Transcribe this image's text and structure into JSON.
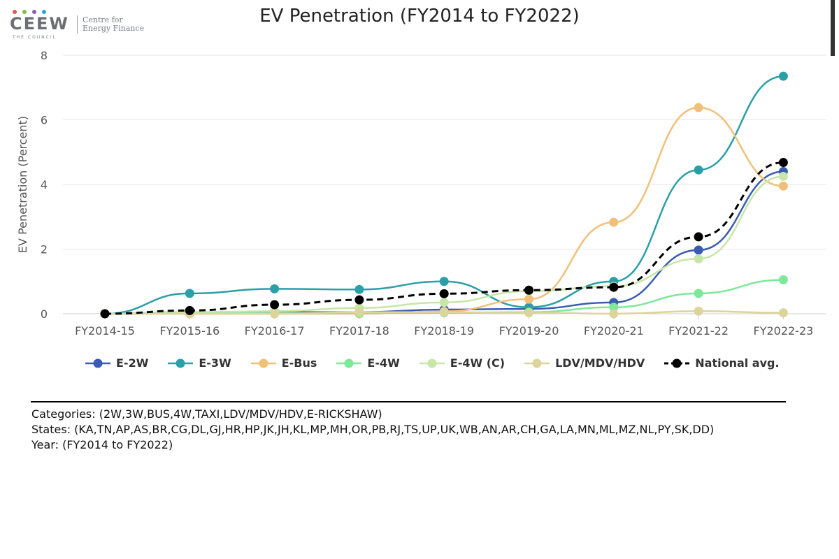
{
  "logo": {
    "mark": "CEEW",
    "tagline": "THE COUNCIL",
    "org_line1": "Centre for",
    "org_line2": "Energy Finance",
    "dot_colors": [
      "#e0584d",
      "#7bbf45",
      "#8a5fb5",
      "#2aa3d8"
    ]
  },
  "chart_data": {
    "type": "line",
    "title": "EV Penetration (FY2014 to FY2022)",
    "xlabel": "",
    "ylabel": "EV Penetration (Percent)",
    "ylim": [
      0,
      8
    ],
    "yticks": [
      0,
      2,
      4,
      6,
      8
    ],
    "grid": true,
    "legend_position": "bottom",
    "categories": [
      "FY2014-15",
      "FY2015-16",
      "FY2016-17",
      "FY2017-18",
      "FY2018-19",
      "FY2019-20",
      "FY2020-21",
      "FY2021-22",
      "FY2022-23"
    ],
    "series": [
      {
        "name": "E-2W",
        "color": "#3a5cb0",
        "dashed": false,
        "values": [
          0.0,
          0.05,
          0.05,
          0.05,
          0.13,
          0.15,
          0.35,
          1.97,
          4.4
        ]
      },
      {
        "name": "E-3W",
        "color": "#2a9fa8",
        "dashed": false,
        "values": [
          0.0,
          0.63,
          0.77,
          0.75,
          1.0,
          0.2,
          1.0,
          4.45,
          7.35
        ]
      },
      {
        "name": "E-Bus",
        "color": "#f0c07a",
        "dashed": false,
        "values": [
          0.0,
          0.0,
          0.0,
          0.0,
          0.07,
          0.45,
          2.83,
          6.38,
          3.95
        ]
      },
      {
        "name": "E-4W",
        "color": "#7de89a",
        "dashed": false,
        "values": [
          0.0,
          0.02,
          0.02,
          0.02,
          0.03,
          0.05,
          0.2,
          0.63,
          1.05
        ]
      },
      {
        "name": "E-4W (C)",
        "color": "#c8e6a8",
        "dashed": false,
        "values": [
          0.0,
          0.05,
          0.08,
          0.18,
          0.35,
          0.7,
          0.85,
          1.7,
          4.25
        ]
      },
      {
        "name": "LDV/MDV/HDV",
        "color": "#dcd49a",
        "dashed": false,
        "values": [
          0.0,
          0.0,
          0.0,
          0.05,
          0.05,
          0.03,
          0.0,
          0.08,
          0.03
        ]
      },
      {
        "name": "National avg.",
        "color": "#000000",
        "dashed": true,
        "values": [
          0.0,
          0.1,
          0.28,
          0.43,
          0.62,
          0.73,
          0.82,
          2.38,
          4.68
        ]
      }
    ]
  },
  "footer": {
    "categories": "Categories: (2W,3W,BUS,4W,TAXI,LDV/MDV/HDV,E-RICKSHAW)",
    "states": "States: (KA,TN,AP,AS,BR,CG,DL,GJ,HR,HP,JK,JH,KL,MP,MH,OR,PB,RJ,TS,UP,UK,WB,AN,AR,CH,GA,LA,MN,ML,MZ,NL,PY,SK,DD)",
    "year": "Year: (FY2014 to FY2022)"
  }
}
